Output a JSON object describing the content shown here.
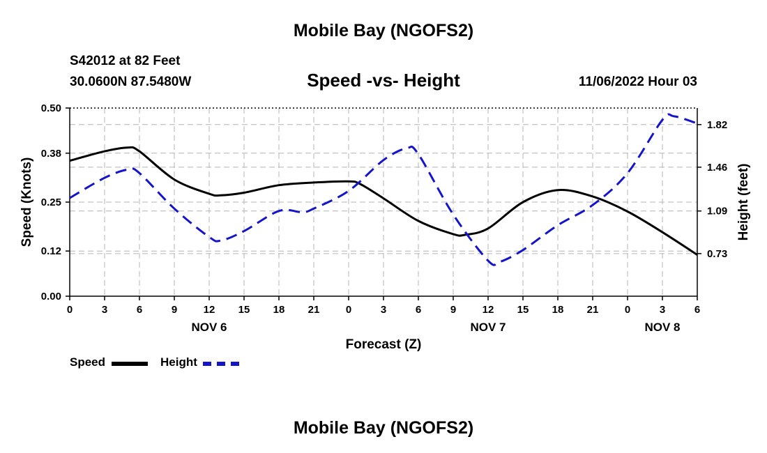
{
  "header": {
    "title": "Mobile Bay (NGOFS2)",
    "station": "S42012 at 82 Feet",
    "coords": "30.0600N  87.5480W",
    "subtitle": "Speed -vs- Height",
    "timestamp": "11/06/2022 Hour 03"
  },
  "footer": {
    "title": "Mobile Bay (NGOFS2)"
  },
  "legend": {
    "speed_label": "Speed",
    "height_label": "Height"
  },
  "colors": {
    "speed": "#000000",
    "height": "#1414c8",
    "grid": "#b4b4b4"
  },
  "chart_data": {
    "type": "line",
    "title": "Speed -vs- Height",
    "xlabel": "Forecast (Z)",
    "ylabel": "Speed (Knots)",
    "y2label": "Height (feet)",
    "x_unit": "forecast hour from Nov 6 00Z",
    "xlim": [
      0,
      54
    ],
    "ylim": [
      0,
      0.5
    ],
    "y2lim": [
      0.37,
      1.96
    ],
    "x_ticks": [
      0,
      3,
      6,
      9,
      12,
      15,
      18,
      21,
      24,
      27,
      30,
      33,
      36,
      39,
      42,
      45,
      48,
      51,
      54
    ],
    "x_tick_labels": [
      "0",
      "3",
      "6",
      "9",
      "12",
      "15",
      "18",
      "21",
      "0",
      "3",
      "6",
      "9",
      "12",
      "15",
      "18",
      "21",
      "0",
      "3",
      "6"
    ],
    "day_labels": [
      {
        "x": 12,
        "label": "NOV 6"
      },
      {
        "x": 36,
        "label": "NOV 7"
      },
      {
        "x": 51,
        "label": "NOV 8"
      }
    ],
    "y_ticks": [
      0.0,
      0.12,
      0.25,
      0.38,
      0.5
    ],
    "y_tick_labels": [
      "0.00",
      "0.12",
      "0.25",
      "0.38",
      "0.50"
    ],
    "y2_ticks": [
      0.73,
      1.09,
      1.46,
      1.82
    ],
    "y2_tick_labels": [
      "0.73",
      "1.09",
      "1.46",
      "1.82"
    ],
    "grid": true,
    "legend_position": "bottom-left",
    "series": [
      {
        "name": "Speed",
        "axis": "left",
        "style": "solid",
        "x": [
          0,
          3,
          5,
          6,
          9,
          12,
          13,
          15,
          18,
          21,
          24,
          25,
          27,
          30,
          33,
          34,
          36,
          39,
          42,
          45,
          48,
          51,
          54
        ],
        "y": [
          0.36,
          0.385,
          0.395,
          0.385,
          0.31,
          0.272,
          0.268,
          0.275,
          0.295,
          0.302,
          0.305,
          0.298,
          0.26,
          0.2,
          0.165,
          0.163,
          0.18,
          0.25,
          0.282,
          0.265,
          0.225,
          0.17,
          0.11
        ]
      },
      {
        "name": "Height",
        "axis": "right",
        "style": "dashed",
        "x": [
          0,
          3,
          5,
          6,
          9,
          12,
          13,
          15,
          18,
          20,
          21,
          24,
          27,
          29,
          30,
          33,
          36,
          37,
          39,
          42,
          45,
          48,
          51,
          52,
          54
        ],
        "y": [
          1.2,
          1.37,
          1.44,
          1.41,
          1.11,
          0.87,
          0.84,
          0.92,
          1.09,
          1.08,
          1.11,
          1.26,
          1.52,
          1.62,
          1.57,
          1.06,
          0.67,
          0.66,
          0.76,
          0.97,
          1.14,
          1.41,
          1.86,
          1.89,
          1.83
        ]
      }
    ]
  }
}
